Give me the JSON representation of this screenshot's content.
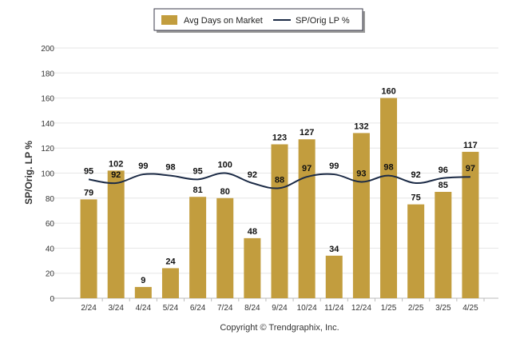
{
  "chart_data": {
    "type": "bar",
    "categories": [
      "2/24",
      "3/24",
      "4/24",
      "5/24",
      "6/24",
      "7/24",
      "8/24",
      "9/24",
      "10/24",
      "11/24",
      "12/24",
      "1/25",
      "2/25",
      "3/25",
      "4/25"
    ],
    "series": [
      {
        "name": "Avg Days on Market",
        "type": "bar",
        "color": "#C29D3E",
        "values": [
          79,
          102,
          9,
          24,
          81,
          80,
          48,
          123,
          127,
          34,
          132,
          160,
          75,
          85,
          117
        ]
      },
      {
        "name": "SP/Orig LP %",
        "type": "line",
        "color": "#1C2B46",
        "values": [
          95,
          92,
          99,
          98,
          95,
          100,
          92,
          88,
          97,
          99,
          93,
          98,
          92,
          96,
          97
        ]
      }
    ],
    "ylabel": "SP/Orig. LP %",
    "ylim": [
      0,
      200
    ],
    "yticks": [
      0,
      20,
      40,
      60,
      80,
      100,
      120,
      140,
      160,
      180,
      200
    ],
    "grid": true,
    "legend_position": "top-center"
  },
  "footer": "Copyright © Trendgraphix, Inc."
}
